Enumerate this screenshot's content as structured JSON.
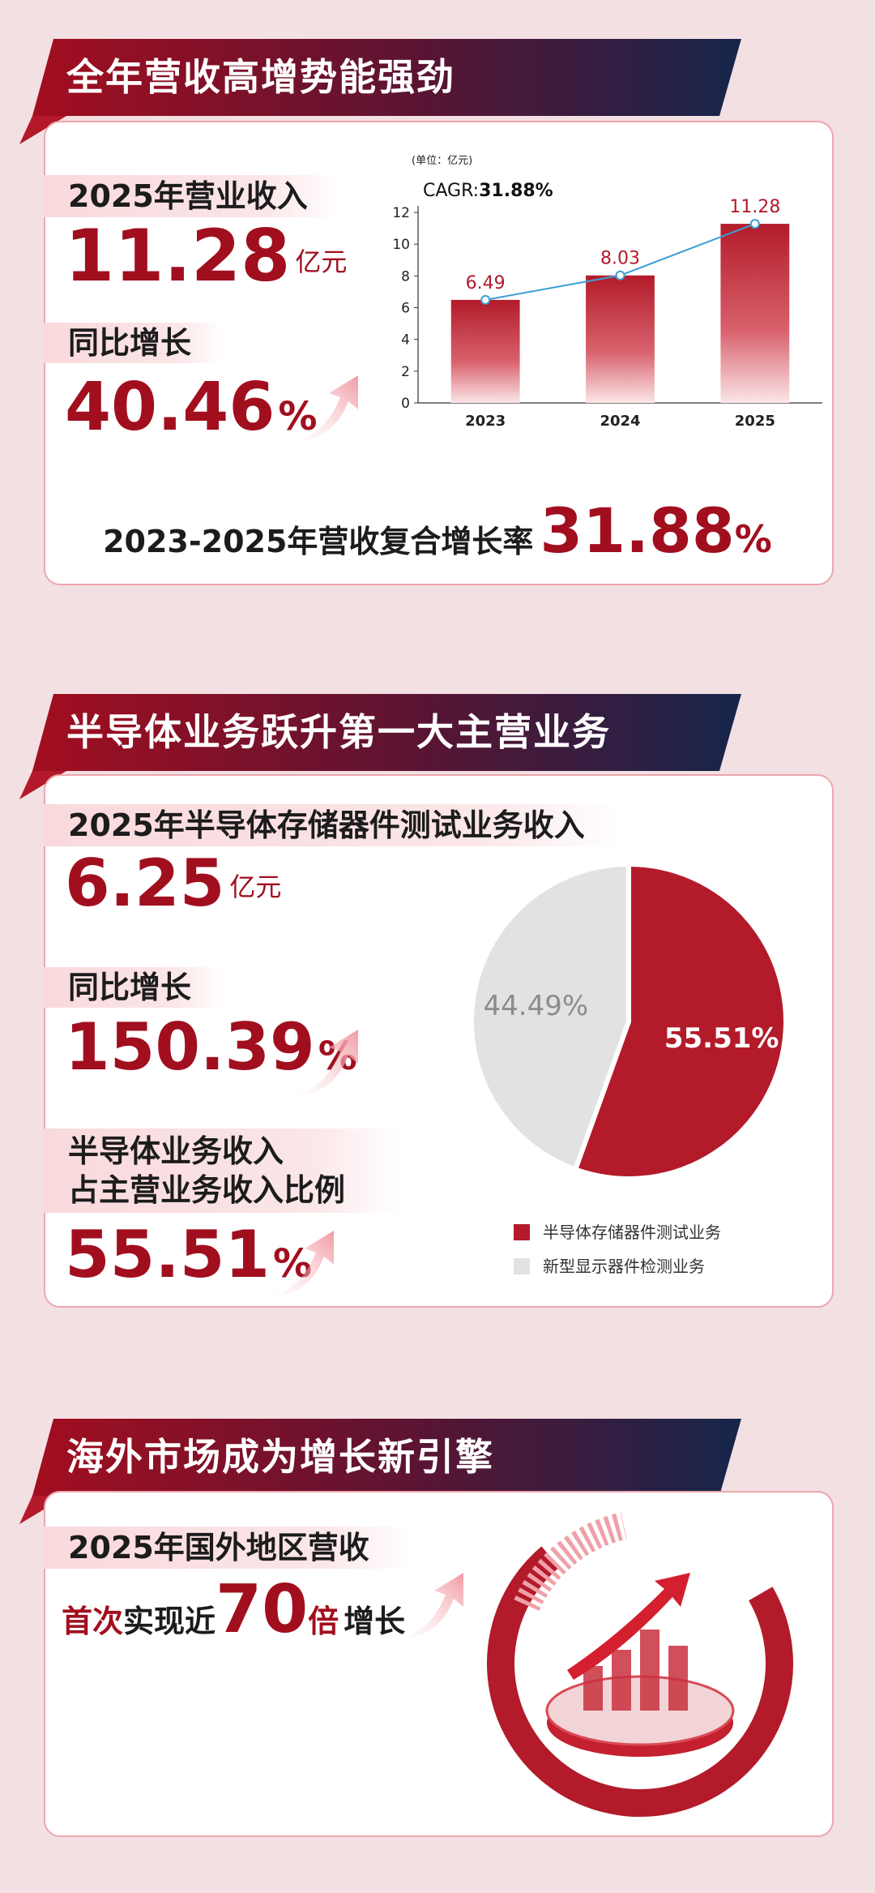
{
  "sections": [
    {
      "title": "全年营收高增势能强劲",
      "metrics": [
        {
          "label": "2025年营业收入",
          "value": 11.28,
          "unit": "亿元"
        },
        {
          "label": "同比增长",
          "value": 40.46,
          "unit": "%"
        }
      ],
      "chart_data": {
        "type": "bar",
        "unit_note": "(单位：亿元)",
        "annotation_label": "CAGR:",
        "annotation_value": "31.88%",
        "categories": [
          "2023",
          "2024",
          "2025"
        ],
        "values": [
          6.49,
          8.03,
          11.28
        ],
        "color": "#b31b2a",
        "line_color": "#3a9fd6",
        "ylim": [
          0,
          12
        ],
        "yticks": [
          0,
          2,
          4,
          6,
          8,
          10,
          12
        ]
      },
      "summary": {
        "label": "2023-2025年营收复合增长率",
        "value": 31.88,
        "unit": "%"
      }
    },
    {
      "title": "半导体业务跃升第一大主营业务",
      "metrics": [
        {
          "label": "2025年半导体存储器件测试业务收入",
          "value": 6.25,
          "unit": "亿元"
        },
        {
          "label": "同比增长",
          "value": 150.39,
          "unit": "%"
        },
        {
          "label": "半导体业务收入\n占主营业务收入比例",
          "value": 55.51,
          "unit": "%"
        }
      ],
      "chart_data": {
        "type": "pie",
        "categories": [
          "半导体存储器件测试业务",
          "新型显示器件检测业务"
        ],
        "values": [
          55.51,
          44.49
        ],
        "value_labels": [
          "55.51%",
          "44.49%"
        ],
        "colors": [
          "#b31b2a",
          "#e2e2e2"
        ],
        "label_colors": [
          "#ffffff",
          "#8c8c8c"
        ]
      }
    },
    {
      "title": "海外市场成为增长新引擎",
      "label": "2025年国外地区营收",
      "highlight": {
        "prefix_red": "首次",
        "prefix": "实现近",
        "value": 70,
        "unit": "倍",
        "suffix": "增长"
      }
    }
  ]
}
